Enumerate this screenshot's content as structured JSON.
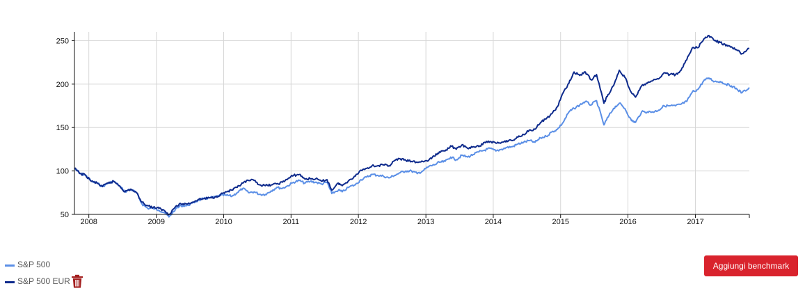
{
  "chart_data": {
    "type": "line",
    "x_type": "date",
    "xlim": [
      "2007-10-15",
      "2017-10-20"
    ],
    "ylim": [
      50,
      260
    ],
    "y_ticks": [
      50,
      100,
      150,
      200,
      250
    ],
    "x_ticks": [
      "2008",
      "2009",
      "2010",
      "2011",
      "2012",
      "2013",
      "2014",
      "2015",
      "2016",
      "2017"
    ],
    "grid": true,
    "legend_position": "bottom-left",
    "series": [
      {
        "name": "S&P 500",
        "color": "#5b8fe6",
        "points": [
          [
            "2007-10-15",
            103
          ],
          [
            "2007-11-15",
            97
          ],
          [
            "2007-12-15",
            95
          ],
          [
            "2008-01-15",
            88
          ],
          [
            "2008-02-15",
            86
          ],
          [
            "2008-03-15",
            82
          ],
          [
            "2008-04-15",
            86
          ],
          [
            "2008-05-15",
            88
          ],
          [
            "2008-06-15",
            83
          ],
          [
            "2008-07-15",
            76
          ],
          [
            "2008-08-15",
            79
          ],
          [
            "2008-09-15",
            75
          ],
          [
            "2008-10-15",
            62
          ],
          [
            "2008-11-15",
            57
          ],
          [
            "2008-12-15",
            57
          ],
          [
            "2009-01-15",
            55
          ],
          [
            "2009-02-15",
            52
          ],
          [
            "2009-03-10",
            47
          ],
          [
            "2009-04-15",
            56
          ],
          [
            "2009-05-15",
            60
          ],
          [
            "2009-06-15",
            60
          ],
          [
            "2009-07-15",
            63
          ],
          [
            "2009-08-15",
            66
          ],
          [
            "2009-09-15",
            68
          ],
          [
            "2009-10-15",
            69
          ],
          [
            "2009-11-15",
            70
          ],
          [
            "2009-12-15",
            72
          ],
          [
            "2010-01-15",
            72
          ],
          [
            "2010-02-15",
            71
          ],
          [
            "2010-03-15",
            75
          ],
          [
            "2010-04-15",
            80
          ],
          [
            "2010-05-15",
            75
          ],
          [
            "2010-06-15",
            76
          ],
          [
            "2010-07-15",
            73
          ],
          [
            "2010-08-15",
            73
          ],
          [
            "2010-09-15",
            77
          ],
          [
            "2010-10-15",
            81
          ],
          [
            "2010-11-15",
            80
          ],
          [
            "2010-12-15",
            83
          ],
          [
            "2011-01-15",
            87
          ],
          [
            "2011-02-15",
            89
          ],
          [
            "2011-03-15",
            86
          ],
          [
            "2011-04-15",
            88
          ],
          [
            "2011-05-15",
            87
          ],
          [
            "2011-06-15",
            85
          ],
          [
            "2011-07-15",
            87
          ],
          [
            "2011-08-10",
            74
          ],
          [
            "2011-09-15",
            78
          ],
          [
            "2011-10-05",
            76
          ],
          [
            "2011-11-15",
            82
          ],
          [
            "2011-12-15",
            84
          ],
          [
            "2012-01-15",
            90
          ],
          [
            "2012-02-15",
            93
          ],
          [
            "2012-03-15",
            96
          ],
          [
            "2012-04-15",
            95
          ],
          [
            "2012-05-15",
            94
          ],
          [
            "2012-06-15",
            92
          ],
          [
            "2012-07-15",
            95
          ],
          [
            "2012-08-15",
            98
          ],
          [
            "2012-09-15",
            100
          ],
          [
            "2012-10-15",
            100
          ],
          [
            "2012-11-15",
            97
          ],
          [
            "2012-12-15",
            100
          ],
          [
            "2013-01-15",
            105
          ],
          [
            "2013-02-15",
            107
          ],
          [
            "2013-03-15",
            110
          ],
          [
            "2013-04-15",
            111
          ],
          [
            "2013-05-15",
            116
          ],
          [
            "2013-06-15",
            113
          ],
          [
            "2013-07-15",
            118
          ],
          [
            "2013-08-15",
            116
          ],
          [
            "2013-09-15",
            119
          ],
          [
            "2013-10-15",
            122
          ],
          [
            "2013-11-15",
            124
          ],
          [
            "2013-12-15",
            126
          ],
          [
            "2014-01-15",
            123
          ],
          [
            "2014-02-15",
            125
          ],
          [
            "2014-03-15",
            127
          ],
          [
            "2014-04-15",
            128
          ],
          [
            "2014-05-15",
            131
          ],
          [
            "2014-06-15",
            133
          ],
          [
            "2014-07-15",
            135
          ],
          [
            "2014-08-15",
            133
          ],
          [
            "2014-09-15",
            138
          ],
          [
            "2014-10-15",
            140
          ],
          [
            "2014-11-15",
            145
          ],
          [
            "2014-12-15",
            148
          ],
          [
            "2015-01-15",
            156
          ],
          [
            "2015-02-15",
            168
          ],
          [
            "2015-03-15",
            172
          ],
          [
            "2015-04-15",
            176
          ],
          [
            "2015-05-15",
            180
          ],
          [
            "2015-06-15",
            176
          ],
          [
            "2015-07-15",
            181
          ],
          [
            "2015-08-24",
            153
          ],
          [
            "2015-09-15",
            162
          ],
          [
            "2015-10-15",
            172
          ],
          [
            "2015-11-15",
            178
          ],
          [
            "2015-12-15",
            172
          ],
          [
            "2016-01-20",
            158
          ],
          [
            "2016-02-11",
            156
          ],
          [
            "2016-03-15",
            168
          ],
          [
            "2016-04-15",
            168
          ],
          [
            "2016-05-15",
            168
          ],
          [
            "2016-06-15",
            170
          ],
          [
            "2016-07-15",
            175
          ],
          [
            "2016-08-15",
            175
          ],
          [
            "2016-09-15",
            175
          ],
          [
            "2016-10-15",
            177
          ],
          [
            "2016-11-15",
            180
          ],
          [
            "2016-12-15",
            191
          ],
          [
            "2017-01-15",
            194
          ],
          [
            "2017-02-15",
            204
          ],
          [
            "2017-03-15",
            207
          ],
          [
            "2017-04-15",
            203
          ],
          [
            "2017-05-15",
            203
          ],
          [
            "2017-06-15",
            200
          ],
          [
            "2017-07-15",
            198
          ],
          [
            "2017-08-15",
            194
          ],
          [
            "2017-09-10",
            190
          ],
          [
            "2017-10-20",
            196
          ]
        ]
      },
      {
        "name": "S&P 500 EUR",
        "color": "#0d2a8c",
        "points": [
          [
            "2007-10-15",
            103
          ],
          [
            "2007-11-15",
            97
          ],
          [
            "2007-12-15",
            95
          ],
          [
            "2008-01-15",
            88
          ],
          [
            "2008-02-15",
            86
          ],
          [
            "2008-03-15",
            82
          ],
          [
            "2008-04-15",
            86
          ],
          [
            "2008-05-15",
            88
          ],
          [
            "2008-06-15",
            83
          ],
          [
            "2008-07-15",
            76
          ],
          [
            "2008-08-15",
            79
          ],
          [
            "2008-09-15",
            75
          ],
          [
            "2008-10-15",
            64
          ],
          [
            "2008-11-15",
            60
          ],
          [
            "2008-12-15",
            58
          ],
          [
            "2009-01-15",
            57
          ],
          [
            "2009-02-15",
            54
          ],
          [
            "2009-03-10",
            50
          ],
          [
            "2009-04-15",
            59
          ],
          [
            "2009-05-15",
            62
          ],
          [
            "2009-06-15",
            62
          ],
          [
            "2009-07-15",
            64
          ],
          [
            "2009-08-15",
            67
          ],
          [
            "2009-09-15",
            68
          ],
          [
            "2009-10-15",
            69
          ],
          [
            "2009-11-15",
            70
          ],
          [
            "2009-12-15",
            73
          ],
          [
            "2010-01-15",
            76
          ],
          [
            "2010-02-15",
            78
          ],
          [
            "2010-03-15",
            81
          ],
          [
            "2010-04-15",
            86
          ],
          [
            "2010-05-15",
            89
          ],
          [
            "2010-06-15",
            89
          ],
          [
            "2010-07-15",
            84
          ],
          [
            "2010-08-15",
            83
          ],
          [
            "2010-09-15",
            84
          ],
          [
            "2010-10-15",
            85
          ],
          [
            "2010-11-15",
            87
          ],
          [
            "2010-12-15",
            91
          ],
          [
            "2011-01-15",
            95
          ],
          [
            "2011-02-15",
            96
          ],
          [
            "2011-03-15",
            91
          ],
          [
            "2011-04-15",
            91
          ],
          [
            "2011-05-15",
            91
          ],
          [
            "2011-06-15",
            88
          ],
          [
            "2011-07-15",
            90
          ],
          [
            "2011-08-10",
            78
          ],
          [
            "2011-09-15",
            86
          ],
          [
            "2011-10-05",
            83
          ],
          [
            "2011-11-15",
            90
          ],
          [
            "2011-12-15",
            94
          ],
          [
            "2012-01-15",
            101
          ],
          [
            "2012-02-15",
            103
          ],
          [
            "2012-03-15",
            106
          ],
          [
            "2012-04-15",
            106
          ],
          [
            "2012-05-15",
            107
          ],
          [
            "2012-06-15",
            106
          ],
          [
            "2012-07-15",
            112
          ],
          [
            "2012-08-15",
            114
          ],
          [
            "2012-09-15",
            112
          ],
          [
            "2012-10-15",
            111
          ],
          [
            "2012-11-15",
            110
          ],
          [
            "2012-12-15",
            111
          ],
          [
            "2013-01-15",
            112
          ],
          [
            "2013-02-15",
            117
          ],
          [
            "2013-03-15",
            122
          ],
          [
            "2013-04-15",
            123
          ],
          [
            "2013-05-15",
            129
          ],
          [
            "2013-06-15",
            125
          ],
          [
            "2013-07-15",
            130
          ],
          [
            "2013-08-15",
            126
          ],
          [
            "2013-09-15",
            128
          ],
          [
            "2013-10-15",
            128
          ],
          [
            "2013-11-15",
            133
          ],
          [
            "2013-12-15",
            134
          ],
          [
            "2014-01-15",
            132
          ],
          [
            "2014-02-15",
            133
          ],
          [
            "2014-03-15",
            135
          ],
          [
            "2014-04-15",
            135
          ],
          [
            "2014-05-15",
            139
          ],
          [
            "2014-06-15",
            142
          ],
          [
            "2014-07-15",
            147
          ],
          [
            "2014-08-15",
            148
          ],
          [
            "2014-09-15",
            156
          ],
          [
            "2014-10-15",
            160
          ],
          [
            "2014-11-15",
            166
          ],
          [
            "2014-12-15",
            174
          ],
          [
            "2015-01-15",
            190
          ],
          [
            "2015-02-15",
            201
          ],
          [
            "2015-03-15",
            214
          ],
          [
            "2015-04-15",
            210
          ],
          [
            "2015-05-15",
            214
          ],
          [
            "2015-06-15",
            205
          ],
          [
            "2015-07-15",
            211
          ],
          [
            "2015-08-24",
            178
          ],
          [
            "2015-09-15",
            188
          ],
          [
            "2015-10-15",
            198
          ],
          [
            "2015-11-15",
            216
          ],
          [
            "2015-12-15",
            208
          ],
          [
            "2016-01-20",
            190
          ],
          [
            "2016-02-11",
            185
          ],
          [
            "2016-03-15",
            198
          ],
          [
            "2016-04-15",
            201
          ],
          [
            "2016-05-15",
            204
          ],
          [
            "2016-06-15",
            206
          ],
          [
            "2016-07-15",
            213
          ],
          [
            "2016-08-15",
            211
          ],
          [
            "2016-09-15",
            211
          ],
          [
            "2016-10-15",
            216
          ],
          [
            "2016-11-15",
            228
          ],
          [
            "2016-12-15",
            242
          ],
          [
            "2017-01-15",
            242
          ],
          [
            "2017-02-15",
            252
          ],
          [
            "2017-03-15",
            256
          ],
          [
            "2017-04-15",
            250
          ],
          [
            "2017-05-15",
            248
          ],
          [
            "2017-06-15",
            244
          ],
          [
            "2017-07-15",
            243
          ],
          [
            "2017-08-15",
            239
          ],
          [
            "2017-09-10",
            235
          ],
          [
            "2017-10-20",
            241
          ]
        ]
      }
    ]
  },
  "legend": {
    "items": [
      {
        "label": "S&P 500",
        "color": "#5b8fe6"
      },
      {
        "label": "S&P 500 EUR",
        "color": "#0d2a8c",
        "removable": true,
        "remove_icon": "trash-icon"
      }
    ]
  },
  "actions": {
    "add_benchmark_label": "Aggiungi benchmark",
    "button_color": "#d9232d"
  }
}
